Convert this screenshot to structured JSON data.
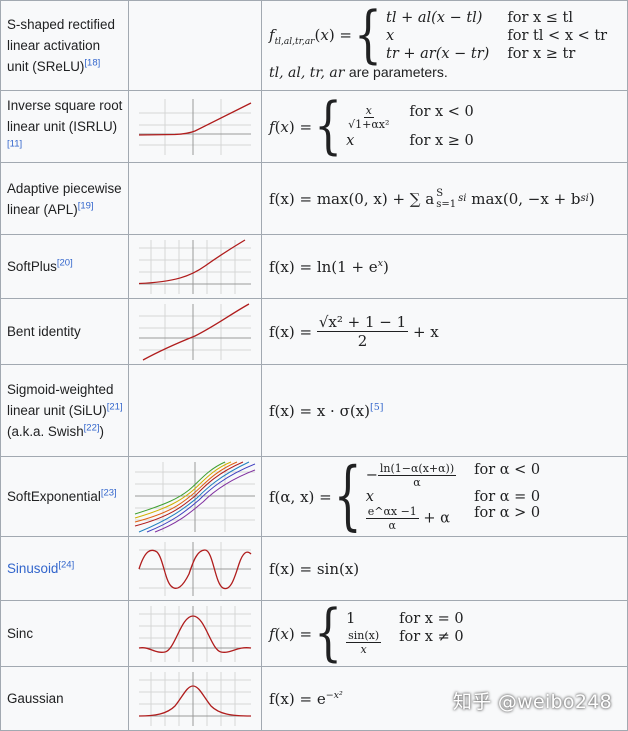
{
  "rows": [
    {
      "name": "S-shaped rectified linear activation unit (SReLU)",
      "ref": "[18]",
      "link": false,
      "eq": {
        "lhs": "f",
        "sub": "tl,al,tr,ar",
        "c1": "tl + al(x − tl)",
        "w1": "for x ≤ tl",
        "c2": "x",
        "w2": "for tl < x < tr",
        "c3": "tr + ar(x − tr)",
        "w3": "for x ≥ tr",
        "note": "tl, al, tr, ar",
        "note_suffix": "are parameters."
      }
    },
    {
      "name": "Inverse square root linear unit (ISRLU)",
      "ref": "[11]",
      "link": false,
      "eq": {
        "num": "x",
        "den": "√1+αx²",
        "w1": "for x < 0",
        "c2": "x",
        "w2": "for x ≥ 0"
      }
    },
    {
      "name": "Adaptive piecewise linear (APL)",
      "ref": "[19]",
      "link": false,
      "eq": {
        "text": "f(x) = max(0, x) + ∑ a",
        "sum_top": "S",
        "sum_bot": "s=1",
        "tail": "max(0, −x + b"
      }
    },
    {
      "name": "SoftPlus",
      "ref": "[20]",
      "link": false,
      "eq": {
        "text": "f(x) = ln(1 + e",
        "sup": "x",
        "close": ")"
      }
    },
    {
      "name": "Bent identity",
      "ref": "",
      "link": false,
      "eq": {
        "lhs": "f(x) =",
        "num": "√x² + 1 − 1",
        "den": "2",
        "tail": "+ x"
      }
    },
    {
      "name": "Sigmoid-weighted linear unit (SiLU)",
      "ref": "[21]",
      "aka": "(a.k.a. Swish",
      "aka_ref": "[22]",
      "aka_close": ")",
      "link": false,
      "eq": {
        "text": "f(x) = x · σ(x)",
        "ref": "[5]"
      }
    },
    {
      "name": "SoftExponential",
      "ref": "[23]",
      "link": false,
      "eq": {
        "lhs": "f(α, x) =",
        "c1num": "ln(1−α(x+α))",
        "c1den": "α",
        "w1": "for α < 0",
        "c2": "x",
        "w2": "for α = 0",
        "c3num": "e^αx −1",
        "c3den": "α",
        "c3tail": "+ α",
        "w3": "for α > 0"
      }
    },
    {
      "name": "Sinusoid",
      "ref": "[24]",
      "link": true,
      "eq": {
        "text": "f(x) = sin(x)"
      }
    },
    {
      "name": "Sinc",
      "ref": "",
      "link": false,
      "eq": {
        "c1": "1",
        "w1": "for x = 0",
        "c2num": "sin(x)",
        "c2den": "x",
        "w2": "for x ≠ 0"
      }
    },
    {
      "name": "Gaussian",
      "ref": "",
      "link": false,
      "eq": {
        "text": "f(x) = e",
        "sup": "−x²"
      }
    }
  ],
  "watermark": "知乎 @weibo248",
  "colors": {
    "curve": "#b01d1d",
    "grid": "#d6d6d6",
    "axis": "#9a9a9a",
    "border": "#a2a9b1",
    "cell": "#f8f9fa",
    "link": "#3366cc"
  }
}
